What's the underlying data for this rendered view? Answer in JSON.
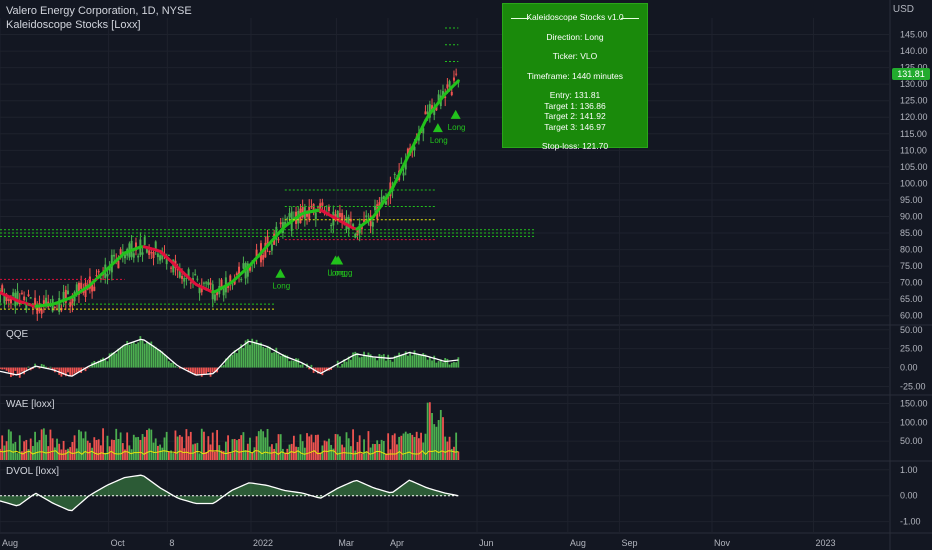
{
  "header": {
    "title": "Valero Energy Corporation, 1D, NYSE",
    "indicator": "Kaleidoscope Stocks [Loxx]"
  },
  "panes": {
    "qqe": "QQE",
    "wae": "WAE [loxx]",
    "dvol": "DVOL [loxx]"
  },
  "currency": "USD",
  "info_box": {
    "title": "Kaleidoscope Stocks v1.0",
    "direction": "Direction: Long",
    "ticker": "Ticker: VLO",
    "timeframe": "Timeframe: 1440 minutes",
    "entry": "Entry: 131.81",
    "target1": "Target 1: 136.86",
    "target2": "Target 2: 141.92",
    "target3": "Target 3: 146.97",
    "stoploss": "Stop-loss: 121.70"
  },
  "last_price": "131.81",
  "colors": {
    "background": "#131722",
    "up": "#4caf50",
    "down": "#ef5350",
    "signal_green": "#22c21c",
    "info_box": "#1a8a0b"
  },
  "chart_data": {
    "type": "line",
    "title": "Valero Energy Corporation, 1D, NYSE",
    "x_ticks": [
      "Aug",
      "Oct",
      "8",
      "2022",
      "Mar",
      "Apr",
      "Jun",
      "Aug",
      "Sep",
      "Nov",
      "2023"
    ],
    "x_tick_frac": [
      0.0,
      0.122,
      0.188,
      0.282,
      0.378,
      0.436,
      0.536,
      0.638,
      0.696,
      0.8,
      0.914
    ],
    "y_ticks_main": [
      "145.00",
      "140.00",
      "135.00",
      "130.00",
      "125.00",
      "120.00",
      "115.00",
      "110.00",
      "105.00",
      "100.00",
      "95.00",
      "90.00",
      "85.00",
      "80.00",
      "75.00",
      "70.00",
      "65.00",
      "60.00"
    ],
    "ylim_main": [
      57.5,
      150
    ],
    "y_ticks_qqe": [
      "50.00",
      "25.00",
      "0.00",
      "-25.00"
    ],
    "ylim_qqe": [
      -35,
      55
    ],
    "y_ticks_wae": [
      "150.00",
      "100.00",
      "50.00"
    ],
    "ylim_wae": [
      0,
      170
    ],
    "y_ticks_dvol": [
      "1.00",
      "0.00",
      "-1.00"
    ],
    "ylim_dvol": [
      -1.4,
      1.3
    ],
    "series": [
      {
        "name": "Kaleidoscope Stocks [Loxx]",
        "type": "line",
        "x": [
          0.0,
          0.02,
          0.04,
          0.06,
          0.08,
          0.1,
          0.12,
          0.14,
          0.16,
          0.18,
          0.2,
          0.22,
          0.24,
          0.26,
          0.28,
          0.3,
          0.32,
          0.34,
          0.36,
          0.38,
          0.4,
          0.42,
          0.44,
          0.46,
          0.48,
          0.5,
          0.515
        ],
        "values": [
          67,
          64.5,
          62.8,
          63.5,
          65.5,
          69,
          74,
          79,
          81,
          79.5,
          74.5,
          69.5,
          67,
          70,
          75,
          81,
          87,
          91,
          92,
          89,
          86,
          90,
          98,
          109,
          120,
          127,
          131
        ]
      },
      {
        "name": "QQE",
        "type": "line",
        "x": [
          0.0,
          0.02,
          0.04,
          0.06,
          0.08,
          0.1,
          0.12,
          0.14,
          0.16,
          0.18,
          0.2,
          0.22,
          0.24,
          0.26,
          0.28,
          0.3,
          0.32,
          0.34,
          0.36,
          0.38,
          0.4,
          0.42,
          0.44,
          0.46,
          0.48,
          0.5,
          0.515
        ],
        "values": [
          -5,
          -10,
          2,
          -3,
          -12,
          2,
          12,
          30,
          38,
          22,
          2,
          -10,
          -8,
          18,
          35,
          28,
          15,
          6,
          -8,
          5,
          18,
          14,
          12,
          20,
          15,
          8,
          10
        ]
      },
      {
        "name": "DVOL",
        "type": "line",
        "x": [
          0.0,
          0.02,
          0.04,
          0.06,
          0.08,
          0.1,
          0.12,
          0.14,
          0.16,
          0.18,
          0.2,
          0.22,
          0.24,
          0.26,
          0.28,
          0.3,
          0.32,
          0.34,
          0.36,
          0.38,
          0.4,
          0.42,
          0.44,
          0.46,
          0.48,
          0.5,
          0.515
        ],
        "values": [
          -0.2,
          -0.4,
          0.1,
          -0.3,
          -0.6,
          0.0,
          0.4,
          0.7,
          0.8,
          0.3,
          -0.1,
          -0.3,
          -0.3,
          0.2,
          0.5,
          0.4,
          0.2,
          0.1,
          -0.1,
          0.3,
          0.6,
          0.3,
          0.1,
          0.6,
          0.3,
          0.1,
          0.0
        ]
      }
    ],
    "signals": [
      {
        "label": "Long",
        "x": 0.315,
        "price": 73
      },
      {
        "label": "Long",
        "x": 0.377,
        "price": 77
      },
      {
        "label": "Longg",
        "x": 0.38,
        "price": 77
      },
      {
        "label": "Long",
        "x": 0.492,
        "price": 117
      },
      {
        "label": "Long",
        "x": 0.512,
        "price": 121
      }
    ]
  }
}
